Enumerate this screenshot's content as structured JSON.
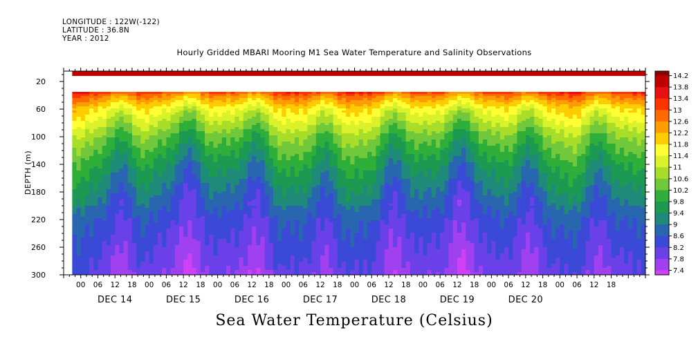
{
  "meta": {
    "longitude": "LONGITUDE : 122W(-122)",
    "latitude": "LATITUDE : 36.8N",
    "year": "YEAR : 2012"
  },
  "colors": {
    "background": "#ffffff",
    "axis": "#000000"
  },
  "chart_data": {
    "type": "heatmap",
    "title": "Hourly Gridded MBARI Mooring M1 Sea Water Temperature and Salinity Observations",
    "xlabel": "Sea Water Temperature (Celsius)",
    "ylabel": "DEPTH (m)",
    "x_unit": "hours since Dec 13 18:00",
    "y_ticks": [
      20,
      60,
      100,
      140,
      180,
      220,
      260,
      300
    ],
    "ylim": [
      300,
      5
    ],
    "hour_labels": [
      "00",
      "06",
      "12",
      "18",
      "00",
      "06",
      "12",
      "18",
      "00",
      "06",
      "12",
      "18",
      "00",
      "06",
      "12",
      "18",
      "00",
      "06",
      "12",
      "18",
      "00",
      "06",
      "12",
      "18",
      "00",
      "06",
      "12",
      "18",
      "00",
      "06",
      "12",
      "18"
    ],
    "day_labels": [
      "DEC 14",
      "DEC 15",
      "DEC 16",
      "DEC 17",
      "DEC 18",
      "DEC 19",
      "DEC 20"
    ],
    "colorbar": {
      "levels": [
        "14.2",
        "13.8",
        "13.4",
        "13",
        "12.6",
        "12.2",
        "11.8",
        "11.4",
        "11",
        "10.6",
        "10.2",
        "9.8",
        "9.4",
        "9",
        "8.6",
        "8.2",
        "7.8",
        "7.4"
      ],
      "colors": [
        "#8b0000",
        "#c00000",
        "#e81010",
        "#ff3300",
        "#ff6a00",
        "#ff9d00",
        "#ffcc00",
        "#ffff33",
        "#d9f22a",
        "#a8de2a",
        "#70c83a",
        "#2fae3a",
        "#1c9a52",
        "#1f8a7a",
        "#2866b0",
        "#3b4ad6",
        "#6a40e8",
        "#a040ee",
        "#d040f5"
      ]
    },
    "data_start_hour": 3,
    "surface_band": {
      "depth_top": 5,
      "depth_bottom": 12,
      "temperature": 13.8
    },
    "missing_band": {
      "depth_top": 12,
      "depth_bottom": 35
    },
    "profile_depths": [
      35,
      40,
      60,
      100,
      140,
      180,
      220,
      260,
      300
    ],
    "profile_mean": [
      13.2,
      12.6,
      11.5,
      10.3,
      9.5,
      8.9,
      8.4,
      8.1,
      7.8
    ]
  }
}
